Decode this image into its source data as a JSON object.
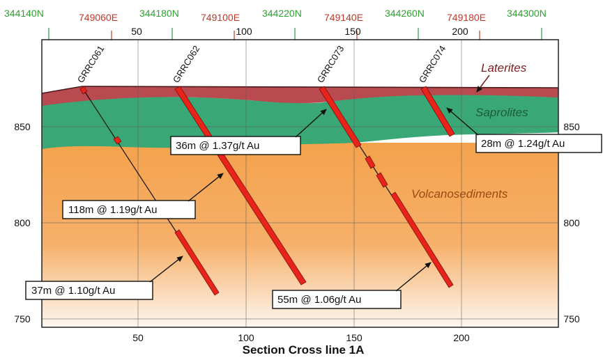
{
  "caption": "Section Cross line 1A",
  "top_coordinates": {
    "northings": [
      "344140N",
      "344180N",
      "344220N",
      "344260N",
      "344300N"
    ],
    "eastings": [
      "749060E",
      "749100E",
      "749140E",
      "749180E"
    ]
  },
  "axes": {
    "top_ticks": [
      "50",
      "100",
      "150",
      "200"
    ],
    "bottom_ticks": [
      "50",
      "100",
      "150",
      "200"
    ],
    "left_ticks": [
      "850",
      "800",
      "750"
    ],
    "right_ticks": [
      "850",
      "800",
      "750"
    ]
  },
  "layers": {
    "laterites": "Laterites",
    "saprolites": "Saprolites",
    "volcanosediments": "Volcanosediments"
  },
  "colors": {
    "laterite": "#b94a50",
    "saprolite": "#3aa876",
    "volcanosediment": "#f4a24b",
    "intercept": "#e8231a",
    "northing": "#2e9e2e",
    "easting": "#c0392b",
    "laterite_label": "#7a1f1f",
    "saprolite_label": "#1f5c3c",
    "volcanosediment_label": "#9c4a10"
  },
  "drillholes": [
    {
      "id": "GRRC061"
    },
    {
      "id": "GRRC062"
    },
    {
      "id": "GRRC073"
    },
    {
      "id": "GRRC074"
    }
  ],
  "intercepts": [
    {
      "label": "118m @ 1.19g/t Au"
    },
    {
      "label": "37m @ 1.10g/t Au"
    },
    {
      "label": "36m @ 1.37g/t Au"
    },
    {
      "label": "55m @ 1.06g/t Au"
    },
    {
      "label": "28m @ 1.24g/t Au"
    }
  ]
}
